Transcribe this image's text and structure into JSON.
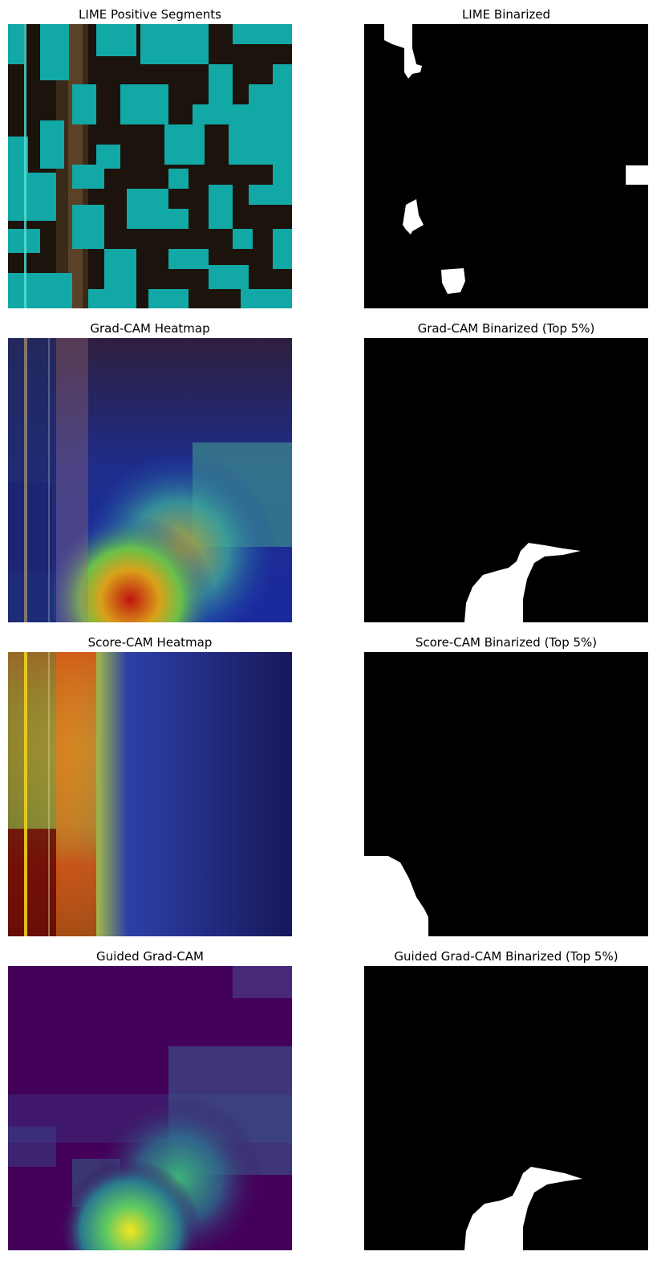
{
  "figure": {
    "rows": [
      {
        "left_title": "LIME Positive Segments",
        "right_title": "LIME Binarized"
      },
      {
        "left_title": "Grad-CAM Heatmap",
        "right_title": "Grad-CAM Binarized (Top 5%)"
      },
      {
        "left_title": "Score-CAM Heatmap",
        "right_title": "Score-CAM Binarized (Top 5%)"
      },
      {
        "left_title": "Guided Grad-CAM",
        "right_title": "Guided Grad-CAM Binarized (Top 5%)"
      }
    ]
  },
  "colors": {
    "background": "#ffffff",
    "lime_segment": "#12a8a5",
    "base_dark": "#1b130c",
    "mask_on": "#ffffff",
    "mask_off": "#000000",
    "viridis_low": "#44015a",
    "viridis_high": "#f5e51e"
  }
}
